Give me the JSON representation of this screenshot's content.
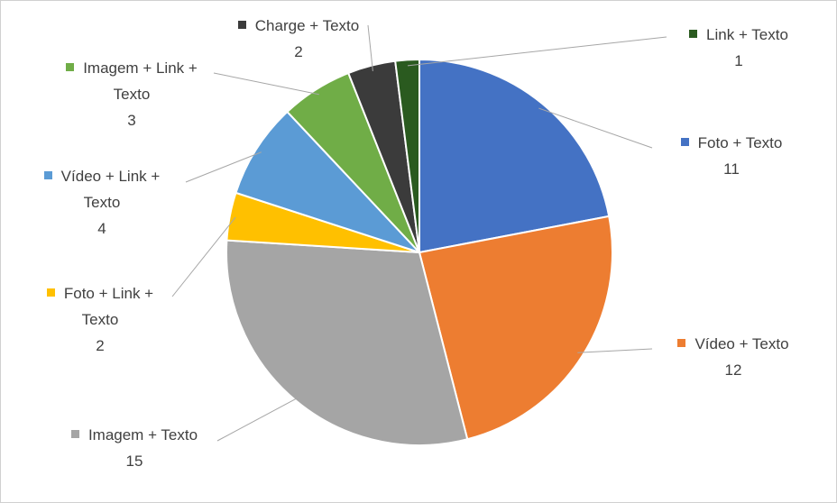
{
  "chart_data": {
    "type": "pie",
    "categories": [
      "Foto + Texto",
      "Vídeo + Texto",
      "Imagem + Texto",
      "Foto + Link + Texto",
      "Vídeo + Link + Texto",
      "Imagem + Link + Texto",
      "Charge + Texto",
      "Link + Texto"
    ],
    "values": [
      11,
      12,
      15,
      2,
      4,
      3,
      2,
      1
    ],
    "colors": [
      "#4472c4",
      "#ed7d31",
      "#a5a5a5",
      "#ffc000",
      "#5b9bd5",
      "#70ad47",
      "#3b3b3b",
      "#2a5a1f"
    ]
  }
}
